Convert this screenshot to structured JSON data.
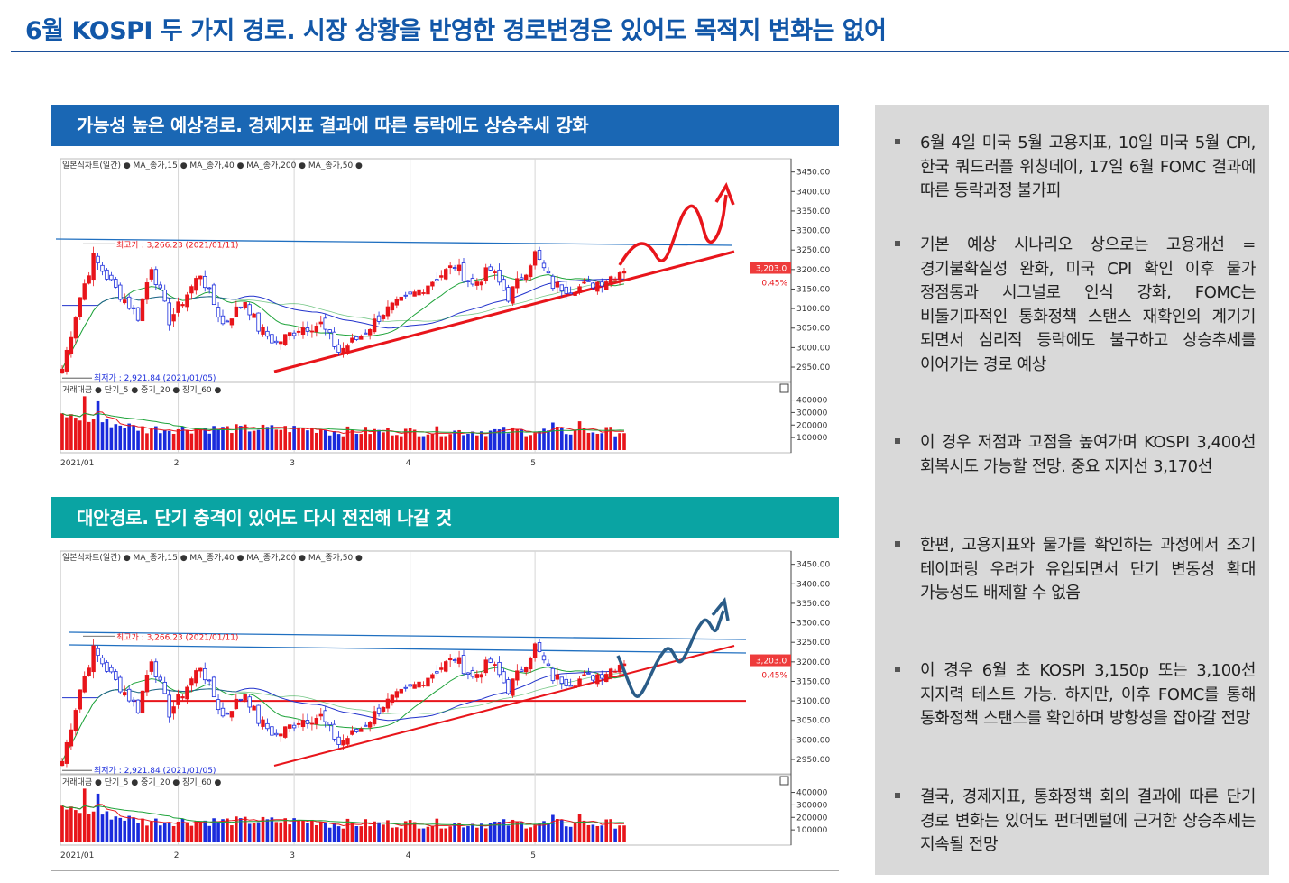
{
  "page": {
    "title": "6월 KOSPI 두 가지 경로. 시장 상황을 반영한 경로변경은 있어도 목적지 변화는 없어"
  },
  "panels": [
    {
      "heading": "가능성 높은 예상경로. 경제지표 결과에 따른 등락에도 상승추세 강화"
    },
    {
      "heading": "대안경로. 단기 충격이 있어도 다시 전진해 나갈 것"
    }
  ],
  "sidebar": {
    "bullets": [
      "6월 4일 미국 5월 고용지표, 10일 미국 5월 CPI, 한국 쿼드러플 위칭데이, 17일 6월 FOMC 결과에 따른 등락과정 불가피",
      "기본 예상 시나리오 상으로는 고용개선 = 경기불확실성 완화, 미국 CPI 확인 이후 물가 정점통과 시그널로 인식 강화, FOMC는 비둘기파적인 통화정책 스탠스 재확인의 계기기 되면서 심리적 등락에도 불구하고 상승추세를 이어가는 경로 예상",
      "이 경우 저점과 고점을 높여가며 KOSPI 3,400선 회복시도 가능할 전망. 중요 지지선 3,170선",
      "한편, 고용지표와 물가를 확인하는 과정에서 조기 테이퍼링 우려가 유입되면서 단기 변동성 확대 가능성도 배제할 수 없음",
      "이 경우 6월 초 KOSPI 3,150p 또는 3,100선 지지력 테스트 가능. 하지만, 이후 FOMC를 통해 통화정책 스탠스를 확인하며 방향성을 잡아갈 전망",
      "결국, 경제지표, 통화정책 회의 결과에 따른 단기 경로 변화는 있어도 펀더멘털에 근거한 상승추세는 지속될 전망"
    ]
  },
  "chart_data": [
    {
      "type": "candlestick",
      "legend_price": "일본식차트(일간) ● MA_종가,15 ● MA_종가,40 ● MA_종가,200 ● MA_종가,50 ●",
      "legend_volume": "거래대금 ● 단기_5 ● 중기_20 ● 장기_60 ●",
      "y_ticks": [
        "3450.00",
        "3400.00",
        "3350.00",
        "3300.00",
        "3250.00",
        "3200.00",
        "3150.00",
        "3100.00",
        "3050.00",
        "3000.00",
        "2950.00"
      ],
      "y_range": [
        2920,
        3470
      ],
      "vol_ticks": [
        "400000",
        "300000",
        "200000",
        "100000"
      ],
      "x_labels": [
        "2021/01",
        "2",
        "3",
        "4",
        "5"
      ],
      "max_label": "최고가 : 3,266.23 (2021/01/11)",
      "min_label": "최저가 : 2,921.84 (2021/01/05)",
      "last_price_label": "3,203.0",
      "last_change_label": "0.45%",
      "scenario": "up",
      "support_line_y": null
    },
    {
      "type": "candlestick",
      "legend_price": "일본식차트(일간) ● MA_종가,15 ● MA_종가,40 ● MA_종가,200 ● MA_종가,50 ●",
      "legend_volume": "거래대금 ● 단기_5 ● 중기_20 ● 장기_60 ●",
      "y_ticks": [
        "3450.00",
        "3400.00",
        "3350.00",
        "3300.00",
        "3250.00",
        "3200.00",
        "3150.00",
        "3100.00",
        "3050.00",
        "3000.00",
        "2950.00"
      ],
      "y_range": [
        2920,
        3470
      ],
      "vol_ticks": [
        "400000",
        "300000",
        "200000",
        "100000"
      ],
      "x_labels": [
        "2021/01",
        "2",
        "3",
        "4",
        "5"
      ],
      "max_label": "최고가 : 3,266.23 (2021/01/11)",
      "min_label": "최저가 : 2,921.84 (2021/01/05)",
      "last_price_label": "3,203.0",
      "last_change_label": "0.45%",
      "scenario": "dip",
      "support_line_y": 3100
    }
  ],
  "colors": {
    "title": "#1257a8",
    "head1": "#1a67b4",
    "head2": "#0aa4a3",
    "up": "#e8151b",
    "down": "#1a2bdc",
    "trend_red": "#e8151b",
    "trend_blue": "#1f6fc0",
    "ma15": "#1ea33a",
    "ma40": "#2233cc",
    "sidebar_bg": "#d9d9d9"
  }
}
